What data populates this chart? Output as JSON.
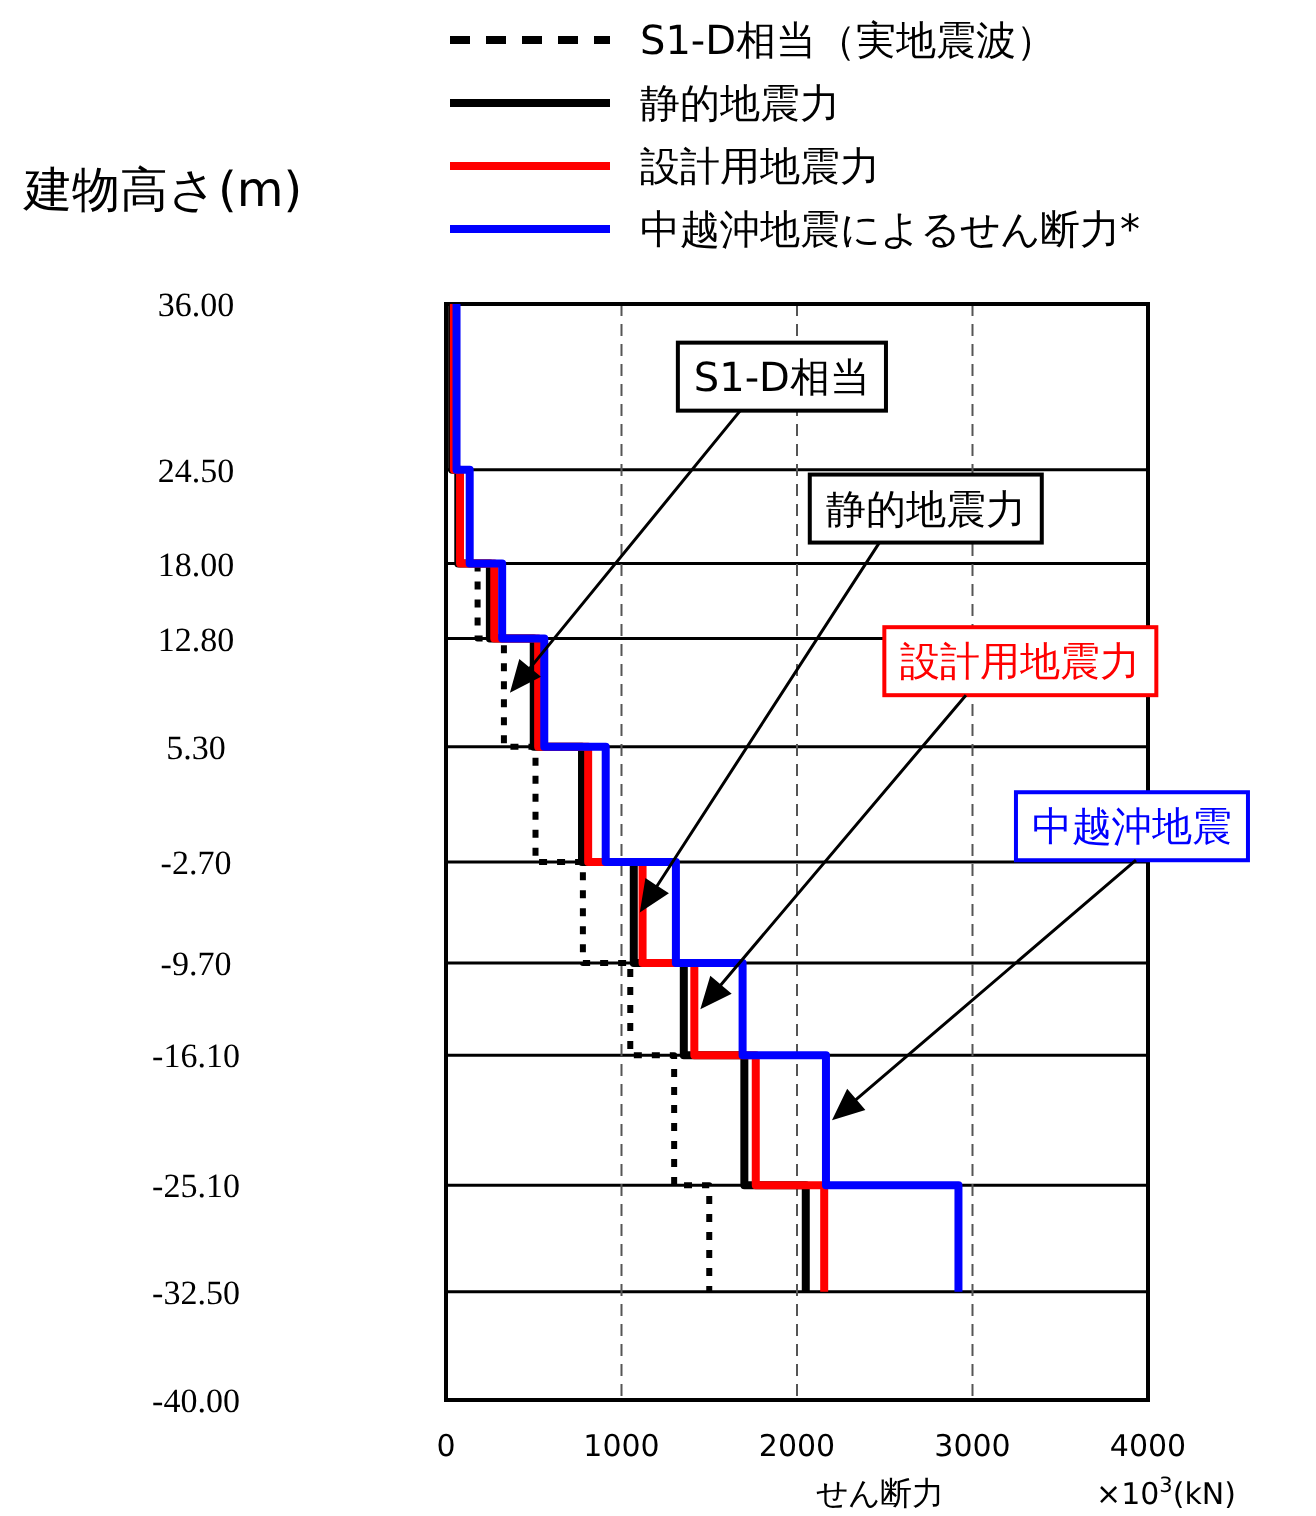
{
  "chart_data": {
    "type": "line",
    "xlabel": "せん断力",
    "ylabel": "建物高さ(m)",
    "xlim": [
      0,
      4000
    ],
    "xticks": [
      0,
      1000,
      2000,
      3000,
      4000
    ],
    "ylim": [
      -40,
      36
    ],
    "yticks": [
      {
        "value": 36,
        "label": "36.00"
      },
      {
        "value": 24.5,
        "label": "24.50"
      },
      {
        "value": 18,
        "label": "18.00"
      },
      {
        "value": 12.8,
        "label": "12.80"
      },
      {
        "value": 5.3,
        "label": "5.30"
      },
      {
        "value": -2.7,
        "label": "-2.70"
      },
      {
        "value": -9.7,
        "label": "-9.70"
      },
      {
        "value": -16.1,
        "label": "-16.10"
      },
      {
        "value": -25.1,
        "label": "-25.10"
      },
      {
        "value": -32.5,
        "label": "-32.50"
      },
      {
        "value": -40,
        "label": "-40.00"
      }
    ],
    "grid": true,
    "legend": "top",
    "series": [
      {
        "name": "S1-D相当（実地震波）",
        "color": "#000000",
        "line_style": "dashed",
        "x": [
          180,
          180,
          330,
          330,
          510,
          510,
          780,
          780,
          1050,
          1050,
          1300,
          1300,
          1500,
          1500
        ],
        "values": [
          18,
          12.8,
          12.8,
          5.3,
          5.3,
          -2.7,
          -2.7,
          -9.7,
          -9.7,
          -16.1,
          -16.1,
          -25.1,
          -25.1,
          -32.5
        ]
      },
      {
        "name": "静的地震力",
        "color": "#000000",
        "line_style": "solid",
        "x": [
          35,
          35,
          70,
          70,
          250,
          250,
          500,
          500,
          775,
          775,
          1070,
          1070,
          1355,
          1355,
          1700,
          1700,
          2050,
          2050
        ],
        "values": [
          36,
          24.5,
          24.5,
          18,
          18,
          12.8,
          12.8,
          5.3,
          5.3,
          -2.7,
          -2.7,
          -9.7,
          -9.7,
          -16.1,
          -16.1,
          -25.1,
          -25.1,
          -32.5
        ]
      },
      {
        "name": "設計用地震力",
        "color": "#ff0000",
        "line_style": "solid",
        "x": [
          45,
          45,
          80,
          80,
          275,
          275,
          525,
          525,
          810,
          810,
          1120,
          1120,
          1415,
          1415,
          1765,
          1765,
          2155,
          2155
        ],
        "values": [
          36,
          24.5,
          24.5,
          18,
          18,
          12.8,
          12.8,
          5.3,
          5.3,
          -2.7,
          -2.7,
          -9.7,
          -9.7,
          -16.1,
          -16.1,
          -25.1,
          -25.1,
          -32.5
        ]
      },
      {
        "name": "中越沖地震によるせん断力*",
        "color": "#0000ff",
        "line_style": "solid",
        "x": [
          60,
          60,
          135,
          135,
          320,
          320,
          560,
          560,
          910,
          910,
          1310,
          1310,
          1690,
          1690,
          2165,
          2165,
          2920,
          2920
        ],
        "values": [
          36,
          24.5,
          24.5,
          18,
          18,
          12.8,
          12.8,
          5.3,
          5.3,
          -2.7,
          -2.7,
          -9.7,
          -9.7,
          -16.1,
          -16.1,
          -25.1,
          -25.1,
          -32.5
        ]
      }
    ],
    "annotations": [
      "S1-D相当",
      "静的地震力",
      "設計用地震力",
      "中越沖地震",
      "×10$^{3}$(kN)"
    ]
  }
}
